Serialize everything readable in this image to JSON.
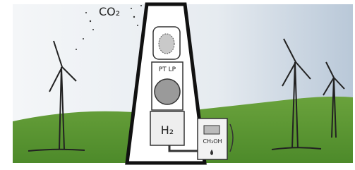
{
  "labels": {
    "co2": "CO₂",
    "membrane": "PT LP",
    "h2": "H₂",
    "methanol": "CH₃OH"
  }
}
